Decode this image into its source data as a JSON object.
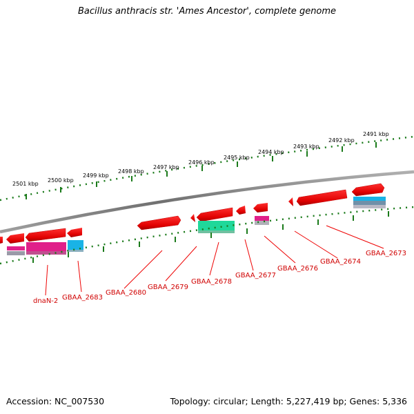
{
  "title": "Bacillus anthracis str. 'Ames Ancestor', complete genome",
  "footer": {
    "accession": "Accession: NC_007530",
    "summary": "Topology: circular; Length: 5,227,419 bp; Genes: 5,336"
  },
  "kbp_labels": [
    "2501 kbp",
    "2500 kbp",
    "2499 kbp",
    "2498 kbp",
    "2497 kbp",
    "2496 kbp",
    "2495 kbp",
    "2494 kbp",
    "2493 kbp",
    "2492 kbp",
    "2491 kbp"
  ],
  "gene_labels": [
    "dnaN-2",
    "GBAA_2683",
    "GBAA_2680",
    "GBAA_2679",
    "GBAA_2678",
    "GBAA_2677",
    "GBAA_2676",
    "GBAA_2674",
    "GBAA_2673"
  ],
  "colors": {
    "gene_arrow": "#ee0000",
    "label": "#d00000",
    "tick": "#1a7a1a",
    "backbone": "#808080",
    "pink": "#e0208a",
    "cyan": "#19b3e6",
    "green": "#20d89a"
  }
}
